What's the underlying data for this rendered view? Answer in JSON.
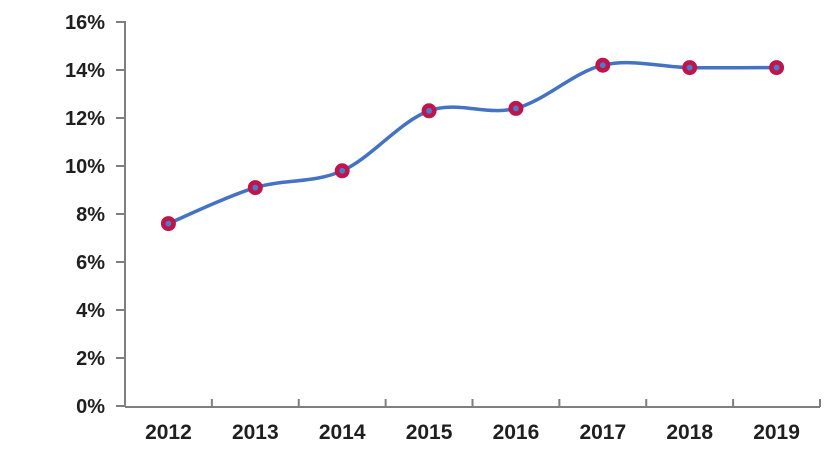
{
  "chart_data": {
    "type": "line",
    "title": "",
    "categories": [
      "2012",
      "2013",
      "2014",
      "2015",
      "2016",
      "2017",
      "2018",
      "2019"
    ],
    "series": [
      {
        "name": "series-1",
        "values": [
          7.6,
          9.1,
          9.8,
          12.3,
          12.4,
          14.2,
          14.1,
          14.1
        ]
      }
    ],
    "xlabel": "",
    "ylabel": "",
    "ylim": [
      0,
      16
    ],
    "y_tick_step": 2,
    "y_tick_labels": [
      "0%",
      "2%",
      "4%",
      "6%",
      "8%",
      "10%",
      "12%",
      "14%",
      "16%"
    ],
    "grid": false,
    "legend_position": "none",
    "smooth": true,
    "marker": "circle-ring",
    "colors": {
      "line": "#4472C4",
      "marker_ring": "#BE164C",
      "marker_fill": "#4A7CCB",
      "axis": "#7F7F7F",
      "label": "#1F1F1F",
      "background": "#FFFFFF"
    }
  }
}
